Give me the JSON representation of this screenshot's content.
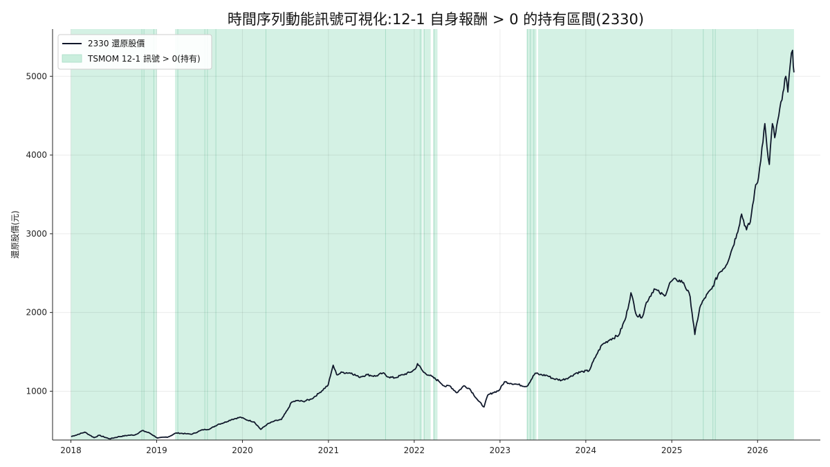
{
  "chart_data": {
    "type": "line",
    "title": "時間序列動能訊號可視化:12-1 自身報酬 > 0 的持有區間(2330)",
    "ylabel": "還原股價(元)",
    "xlabel": "",
    "xlim": [
      "2017-10-15",
      "2026-09-25"
    ],
    "ylim": [
      380,
      5600
    ],
    "grid": true,
    "legend_position": "top-left",
    "x_ticks": [
      "2018",
      "2019",
      "2020",
      "2021",
      "2022",
      "2023",
      "2024",
      "2025",
      "2026"
    ],
    "y_ticks": [
      1000,
      2000,
      3000,
      4000,
      5000
    ],
    "series": [
      {
        "name": "2330 還原股價",
        "color": "#0f172a",
        "x": [
          "2018-01-02",
          "2018-01-20",
          "2018-03-01",
          "2018-04-10",
          "2018-05-01",
          "2018-06-15",
          "2018-07-20",
          "2018-09-01",
          "2018-10-01",
          "2018-11-01",
          "2018-12-01",
          "2019-01-05",
          "2019-02-20",
          "2019-03-25",
          "2019-05-05",
          "2019-06-01",
          "2019-07-15",
          "2019-08-15",
          "2019-09-20",
          "2019-10-15",
          "2019-11-15",
          "2019-12-25",
          "2020-01-15",
          "2020-02-20",
          "2020-03-19",
          "2020-04-15",
          "2020-05-15",
          "2020-06-15",
          "2020-07-10",
          "2020-07-28",
          "2020-08-20",
          "2020-09-15",
          "2020-10-20",
          "2020-11-20",
          "2020-12-31",
          "2021-01-10",
          "2021-01-21",
          "2021-02-05",
          "2021-03-01",
          "2021-04-10",
          "2021-05-10",
          "2021-06-15",
          "2021-07-20",
          "2021-08-20",
          "2021-09-15",
          "2021-10-10",
          "2021-11-15",
          "2021-12-15",
          "2022-01-05",
          "2022-01-15",
          "2022-02-10",
          "2022-03-08",
          "2022-04-15",
          "2022-05-12",
          "2022-06-01",
          "2022-07-01",
          "2022-08-01",
          "2022-08-25",
          "2022-09-30",
          "2022-10-25",
          "2022-11-10",
          "2022-12-01",
          "2022-12-28",
          "2023-01-20",
          "2023-02-15",
          "2023-03-10",
          "2023-04-25",
          "2023-05-31",
          "2023-06-20",
          "2023-07-20",
          "2023-08-15",
          "2023-09-20",
          "2023-10-25",
          "2023-11-20",
          "2023-12-20",
          "2024-01-15",
          "2024-02-15",
          "2024-03-10",
          "2024-04-15",
          "2024-05-20",
          "2024-06-20",
          "2024-07-11",
          "2024-08-05",
          "2024-08-30",
          "2024-09-15",
          "2024-10-18",
          "2024-11-10",
          "2024-12-01",
          "2024-12-27",
          "2025-01-20",
          "2025-02-20",
          "2025-03-20",
          "2025-04-09",
          "2025-04-30",
          "2025-05-20",
          "2025-06-20",
          "2025-07-20",
          "2025-08-20",
          "2025-09-15",
          "2025-10-05",
          "2025-10-25",
          "2025-11-15",
          "2025-12-01",
          "2025-12-20",
          "2026-01-05",
          "2026-01-20",
          "2026-02-01",
          "2026-02-10",
          "2026-02-20",
          "2026-03-05",
          "2026-03-15",
          "2026-04-01",
          "2026-04-15",
          "2026-05-01",
          "2026-05-10",
          "2026-05-20",
          "2026-05-30",
          "2026-06-05"
        ],
        "y": [
          425,
          440,
          480,
          410,
          440,
          395,
          420,
          440,
          445,
          500,
          470,
          405,
          420,
          470,
          460,
          455,
          510,
          520,
          580,
          600,
          640,
          670,
          640,
          610,
          515,
          580,
          620,
          640,
          760,
          860,
          880,
          870,
          900,
          970,
          1080,
          1200,
          1330,
          1210,
          1240,
          1230,
          1180,
          1210,
          1190,
          1230,
          1180,
          1170,
          1210,
          1240,
          1280,
          1350,
          1240,
          1200,
          1130,
          1060,
          1070,
          980,
          1070,
          1030,
          880,
          800,
          950,
          980,
          1010,
          1120,
          1100,
          1090,
          1060,
          1230,
          1210,
          1200,
          1160,
          1140,
          1180,
          1230,
          1250,
          1260,
          1460,
          1590,
          1660,
          1710,
          1940,
          2250,
          1960,
          1950,
          2130,
          2300,
          2250,
          2210,
          2390,
          2420,
          2380,
          2200,
          1720,
          2060,
          2180,
          2300,
          2500,
          2600,
          2810,
          3000,
          3250,
          3050,
          3150,
          3550,
          3710,
          4100,
          4400,
          4100,
          3880,
          4400,
          4220,
          4500,
          4700,
          5000,
          4800,
          5150,
          5330,
          5050
        ]
      }
    ],
    "signal_band": {
      "name": "TSMOM 12-1 訊號 > 0(持有)",
      "color": "#c9eedd",
      "intervals": [
        [
          "2018-01-01",
          "2019-01-02"
        ],
        [
          "2019-03-20",
          "2022-02-05"
        ],
        [
          "2022-02-09",
          "2022-03-12"
        ],
        [
          "2022-03-23",
          "2022-04-10"
        ],
        [
          "2023-04-25",
          "2023-06-05"
        ],
        [
          "2023-06-12",
          "2026-06-05"
        ]
      ],
      "edges": [
        "2018-10-30",
        "2018-11-08",
        "2018-12-20",
        "2019-04-01",
        "2019-07-25",
        "2019-08-05",
        "2019-09-10",
        "2020-04-10",
        "2021-09-01",
        "2022-01-27",
        "2022-02-12",
        "2022-03-26",
        "2023-04-27",
        "2023-05-10",
        "2023-05-25",
        "2025-05-15",
        "2025-06-25",
        "2025-07-05"
      ]
    }
  }
}
